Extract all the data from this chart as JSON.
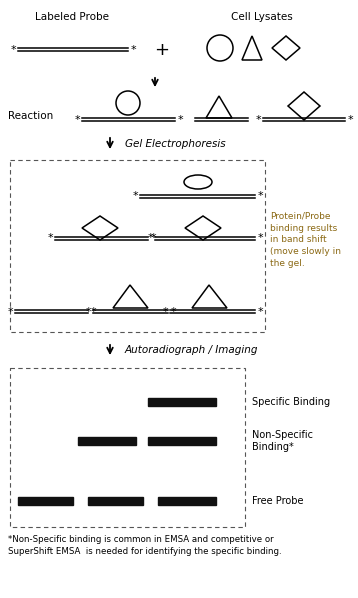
{
  "fig_width": 3.58,
  "fig_height": 5.98,
  "bg_color": "#ffffff",
  "text_color": "#000000",
  "label_color": "#8B6914",
  "title1": "Labeled Probe",
  "title2": "Cell Lysates",
  "reaction_label": "Reaction",
  "gel_label": "Gel Electrophoresis",
  "autorad_label": "Autoradiograph / Imaging",
  "protein_note": "Protein/Probe\nbinding results\nin band shift\n(move slowly in\nthe gel.",
  "specific_binding": "Specific Binding",
  "non_specific_binding": "Non-Specific\nBinding*",
  "free_probe": "Free Probe",
  "footnote": "*Non-Specific binding is common in EMSA and competitive or\nSuperShift EMSA  is needed for identifying the specific binding."
}
